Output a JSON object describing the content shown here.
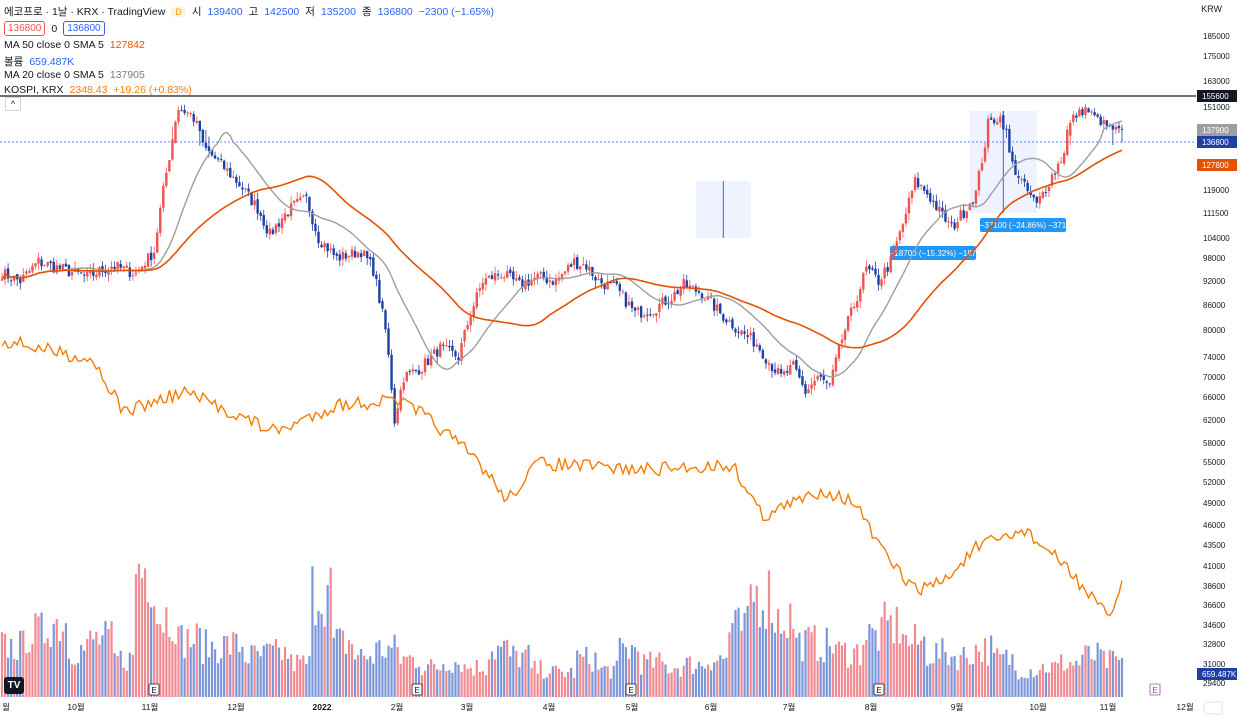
{
  "header": {
    "symbol_line": "에코프로 · 1날 · KRX · TradingView",
    "d_badge": "D",
    "ohlc": {
      "open_label": "시",
      "open": "139400",
      "high_label": "고",
      "high": "142500",
      "low_label": "저",
      "low": "135200",
      "close_label": "종",
      "close": "136800",
      "change": "−2300 (−1.65%)"
    },
    "bid": "136800",
    "spread": "0",
    "ask": "136800",
    "ma50_label": "MA 50 close 0 SMA 5",
    "ma50_value": "127842",
    "volume_label": "볼륨",
    "volume_value": "659.487K",
    "ma20_label": "MA 20 close 0 SMA 5",
    "ma20_value": "137905",
    "kospi_label": "KOSPI, KRX",
    "kospi_value": "2348.43",
    "kospi_change": "+19.26 (+0.83%)",
    "currency": "KRW",
    "collapse_glyph": "^",
    "logo_glyph": "TV"
  },
  "colors": {
    "up": "#ef5350",
    "down": "#1e3fa6",
    "ma50": "#e65100",
    "ma20": "#9e9e9e",
    "kospi": "#f57c00",
    "vol_up": "#f28b91",
    "vol_down": "#7b96d9",
    "hline": "#131722"
  },
  "chart_data": {
    "type": "candlestick",
    "y_ticks": [
      "185000",
      "175000",
      "163000",
      "155600",
      "151000",
      "137900",
      "136800",
      "127800",
      "119000",
      "111500",
      "104000",
      "98000",
      "92000",
      "86000",
      "80000",
      "74000",
      "70000",
      "66000",
      "62000",
      "58000",
      "55000",
      "52000",
      "49000",
      "46000",
      "43500",
      "41000",
      "38600",
      "36600",
      "34600",
      "32800",
      "31000",
      "659.487K",
      "29400"
    ],
    "x_labels": [
      "월",
      "10월",
      "11월",
      "12월",
      "2022",
      "2월",
      "3월",
      "4월",
      "5월",
      "6월",
      "7월",
      "8월",
      "9월",
      "10월",
      "11월",
      "12월"
    ],
    "price_badges": [
      {
        "label": "155600",
        "kind": "black"
      },
      {
        "label": "137900",
        "kind": "gray"
      },
      {
        "label": "136800",
        "kind": "blue"
      },
      {
        "label": "127800",
        "kind": "orange"
      },
      {
        "label": "659.487K",
        "kind": "navy"
      }
    ],
    "horizontal_line": 155600,
    "measurements": [
      "−18700 (−15.32%) −187",
      "−37100 (−24.86%) −371"
    ],
    "earnings_markers": [
      "E",
      "E",
      "E",
      "E",
      "E"
    ],
    "anchors": [
      [
        0,
        94000
      ],
      [
        6,
        92000
      ],
      [
        12,
        97000
      ],
      [
        20,
        95000
      ],
      [
        28,
        93000
      ],
      [
        36,
        96000
      ],
      [
        44,
        94000
      ],
      [
        50,
        100000
      ],
      [
        54,
        125000
      ],
      [
        58,
        150000
      ],
      [
        62,
        147000
      ],
      [
        66,
        135000
      ],
      [
        72,
        128000
      ],
      [
        78,
        121000
      ],
      [
        84,
        113000
      ],
      [
        88,
        105000
      ],
      [
        92,
        110000
      ],
      [
        96,
        114000
      ],
      [
        100,
        116000
      ],
      [
        104,
        104000
      ],
      [
        110,
        98000
      ],
      [
        118,
        100000
      ],
      [
        122,
        95000
      ],
      [
        126,
        80000
      ],
      [
        129,
        62000
      ],
      [
        132,
        70000
      ],
      [
        138,
        72000
      ],
      [
        144,
        76000
      ],
      [
        150,
        74000
      ],
      [
        154,
        84000
      ],
      [
        158,
        92000
      ],
      [
        164,
        94000
      ],
      [
        170,
        91000
      ],
      [
        176,
        93000
      ],
      [
        182,
        92000
      ],
      [
        188,
        97000
      ],
      [
        192,
        96000
      ],
      [
        196,
        92000
      ],
      [
        202,
        90000
      ],
      [
        208,
        84000
      ],
      [
        214,
        85000
      ],
      [
        220,
        88000
      ],
      [
        224,
        91000
      ],
      [
        230,
        89000
      ],
      [
        236,
        84000
      ],
      [
        242,
        80000
      ],
      [
        248,
        77000
      ],
      [
        252,
        73000
      ],
      [
        256,
        70000
      ],
      [
        260,
        72000
      ],
      [
        264,
        67000
      ],
      [
        268,
        70000
      ],
      [
        272,
        68000
      ],
      [
        276,
        78000
      ],
      [
        280,
        86000
      ],
      [
        284,
        95000
      ],
      [
        288,
        92000
      ],
      [
        292,
        97000
      ],
      [
        296,
        108000
      ],
      [
        300,
        122000
      ],
      [
        304,
        118000
      ],
      [
        308,
        112000
      ],
      [
        312,
        107000
      ],
      [
        316,
        112000
      ],
      [
        320,
        118000
      ],
      [
        324,
        142000
      ],
      [
        328,
        145000
      ],
      [
        332,
        128000
      ],
      [
        336,
        120000
      ],
      [
        340,
        114000
      ],
      [
        344,
        122000
      ],
      [
        348,
        130000
      ],
      [
        352,
        145000
      ],
      [
        356,
        150000
      ],
      [
        360,
        144000
      ],
      [
        364,
        139000
      ],
      [
        368,
        137000
      ]
    ],
    "volume_ratio": [
      0.37,
      0.47,
      0.55,
      0.35,
      0.42,
      0.28,
      0.95,
      0.6,
      0.42,
      0.37,
      0.38,
      0.3,
      0.32,
      0.25,
      0.78,
      0.4,
      0.3,
      0.35,
      0.28,
      0.22,
      0.26,
      0.22,
      0.35,
      0.3,
      0.2,
      0.18,
      0.28,
      0.2,
      0.35,
      0.25,
      0.22,
      0.24,
      0.28,
      0.5,
      0.75,
      0.58,
      0.4,
      0.38,
      0.33,
      0.45,
      0.52,
      0.4,
      0.32,
      0.3,
      0.35,
      0.28,
      0.2,
      0.22,
      0.25,
      0.3,
      0.26
    ]
  }
}
